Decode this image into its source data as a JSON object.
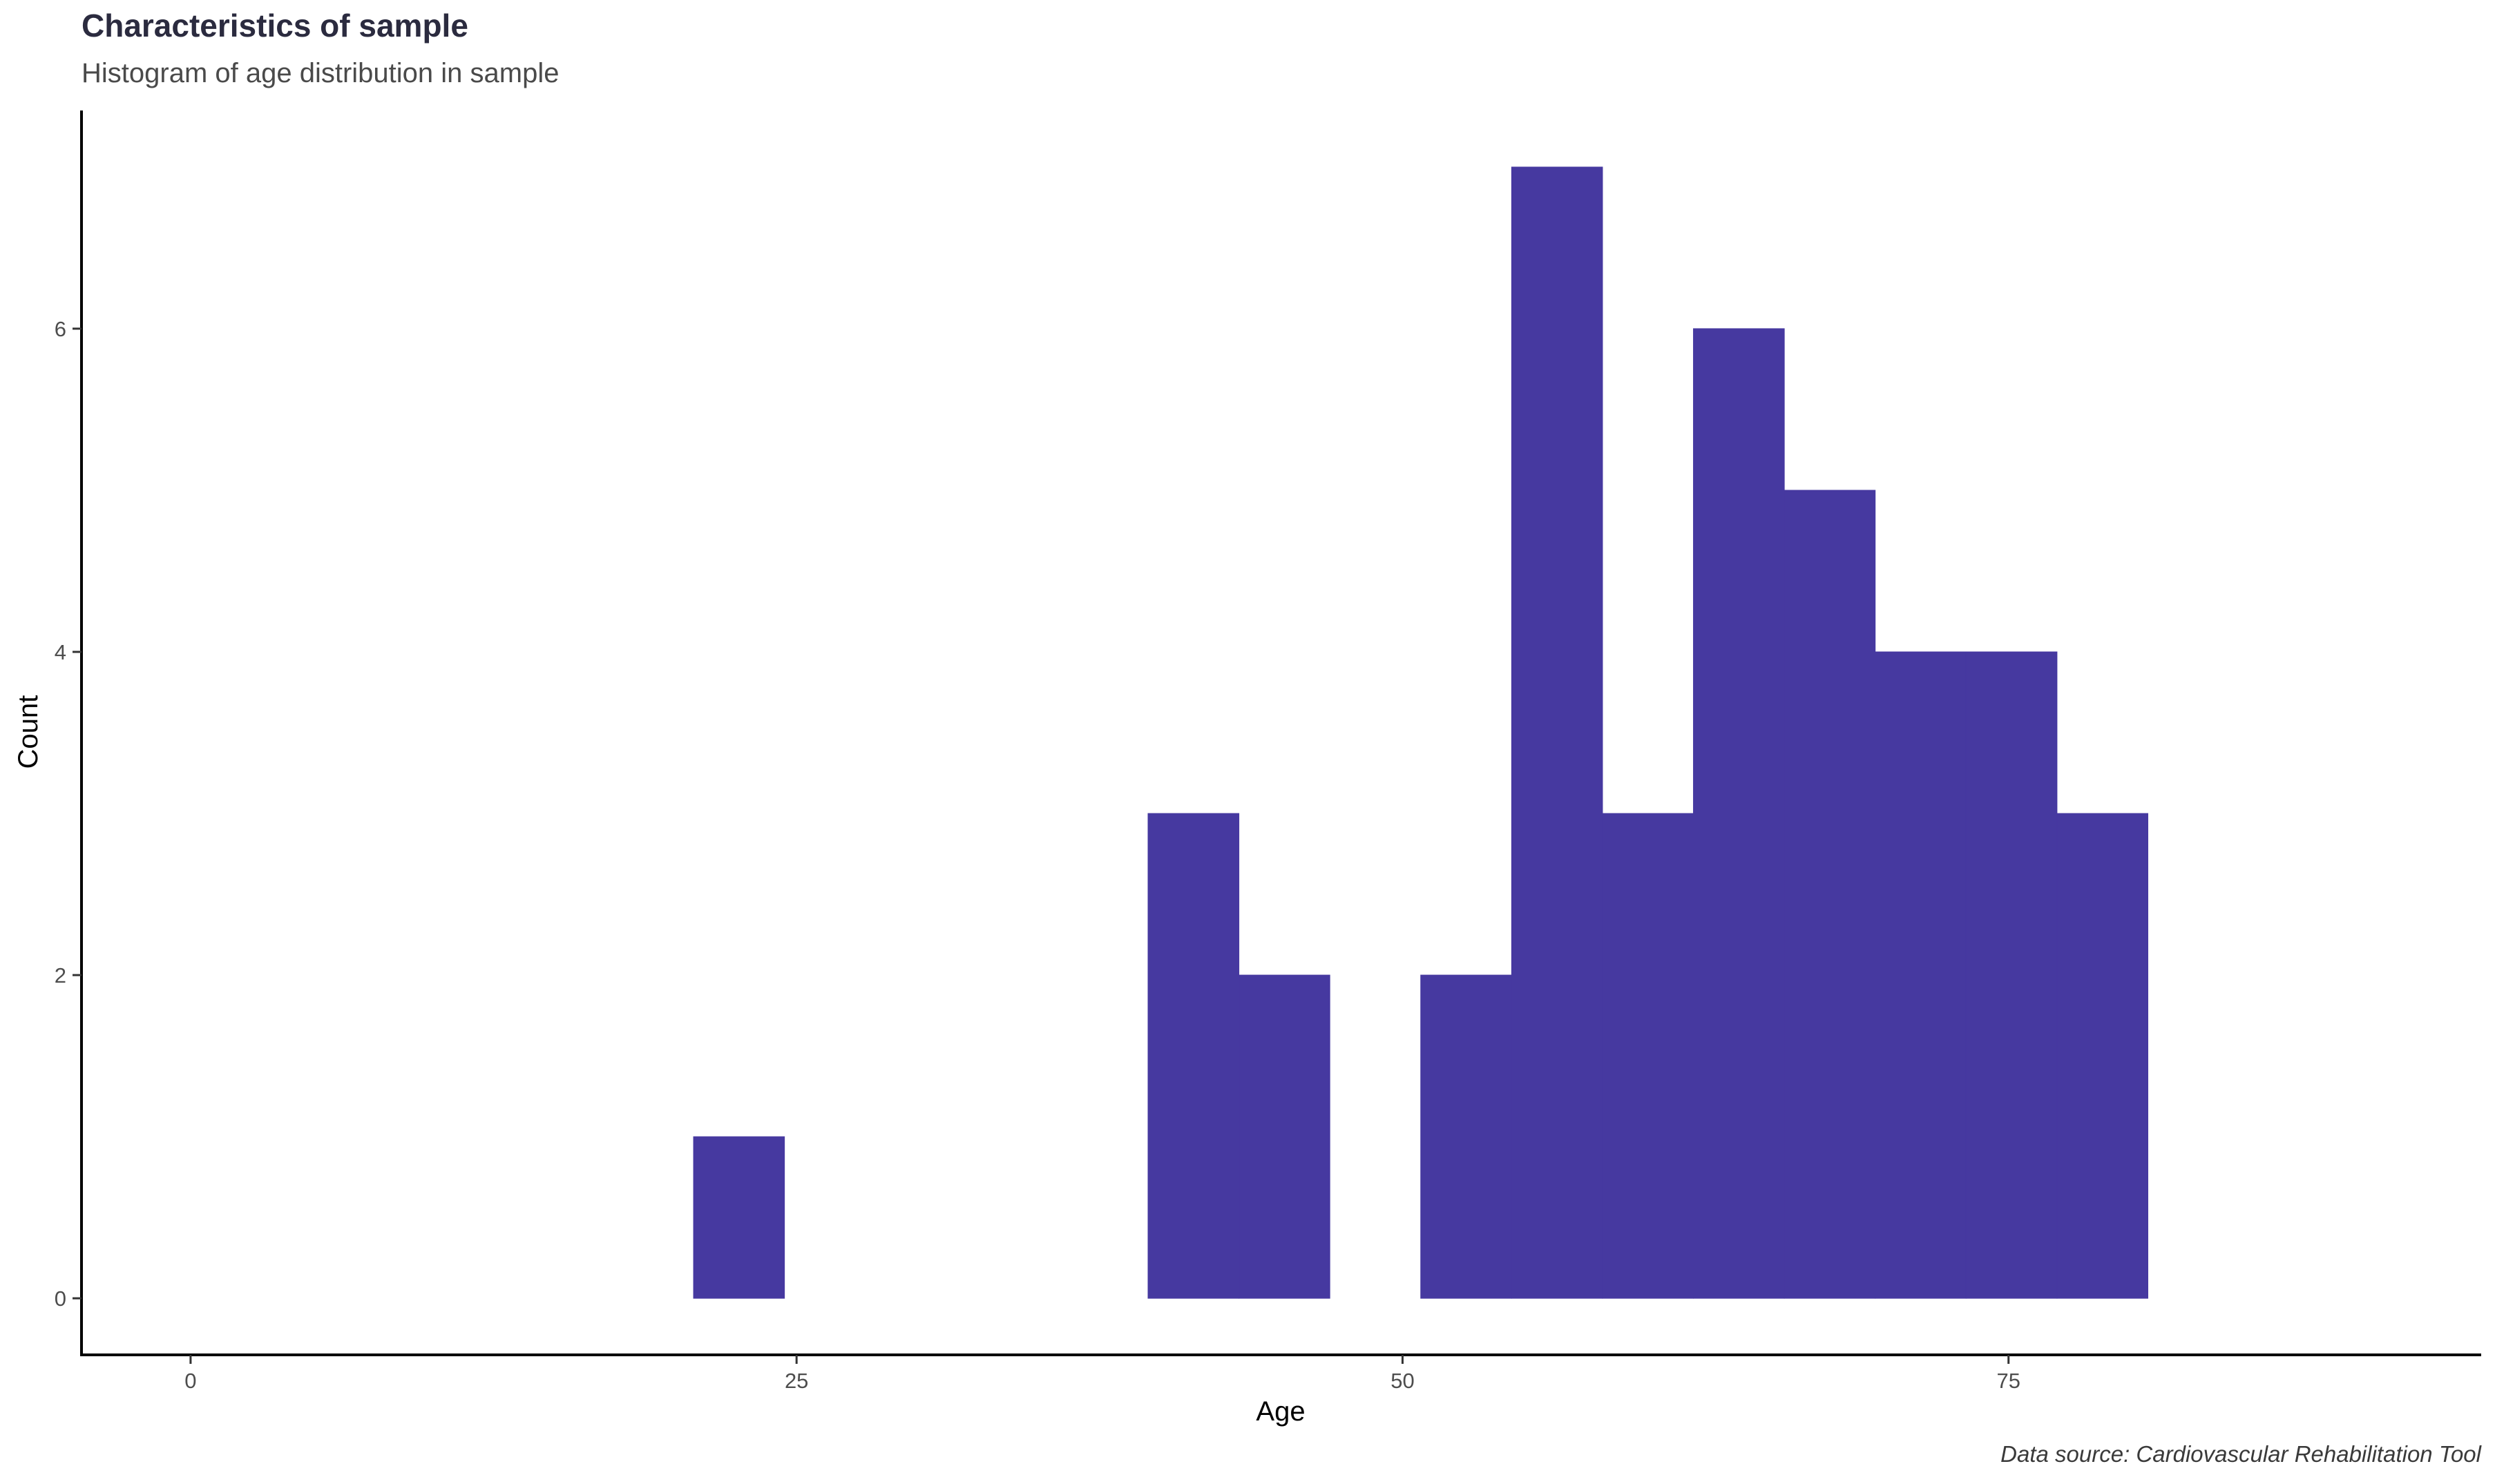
{
  "chart_data": {
    "type": "bar",
    "title": "Characteristics of sample",
    "subtitle": "Histogram of age distribution in sample",
    "xlabel": "Age",
    "ylabel": "Count",
    "caption": "Data source: Cardiovascular Rehabilitation Tool",
    "bin_width": 3.75,
    "bins": [
      {
        "start": 20.75,
        "end": 24.5,
        "count": 1
      },
      {
        "start": 39.5,
        "end": 43.25,
        "count": 3
      },
      {
        "start": 43.25,
        "end": 47.0,
        "count": 2
      },
      {
        "start": 50.75,
        "end": 54.5,
        "count": 2
      },
      {
        "start": 54.5,
        "end": 58.25,
        "count": 7
      },
      {
        "start": 58.25,
        "end": 62.0,
        "count": 3
      },
      {
        "start": 62.0,
        "end": 65.75,
        "count": 6
      },
      {
        "start": 65.75,
        "end": 69.5,
        "count": 5
      },
      {
        "start": 69.5,
        "end": 73.25,
        "count": 4
      },
      {
        "start": 73.25,
        "end": 77.0,
        "count": 4
      },
      {
        "start": 77.0,
        "end": 80.75,
        "count": 3
      }
    ],
    "x_ticks": [
      "0",
      "25",
      "50",
      "75"
    ],
    "y_ticks": [
      "0",
      "2",
      "4",
      "6"
    ],
    "xlim": [
      -4.5,
      94.5
    ],
    "ylim": [
      -0.35,
      7.35
    ],
    "grid": false,
    "legend": "none",
    "colors": {
      "bar_fill": "#4639a0",
      "axis_line": "#000000",
      "title": "#2b2b3f",
      "subtitle": "#4a4a4a"
    }
  }
}
